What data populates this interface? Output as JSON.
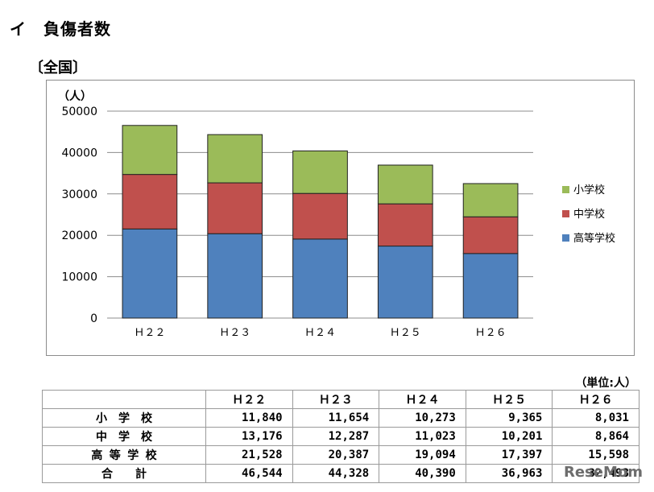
{
  "heading": "イ　負傷者数",
  "region": "〔全国〕",
  "chart_data": {
    "type": "bar",
    "stacked": true,
    "categories": [
      "Ｈ２２",
      "Ｈ２３",
      "Ｈ２４",
      "Ｈ２５",
      "Ｈ２６"
    ],
    "series": [
      {
        "name": "高等学校",
        "values": [
          21528,
          20387,
          19094,
          17397,
          15598
        ],
        "color": "#4f81bd"
      },
      {
        "name": "中学校",
        "values": [
          13176,
          12287,
          11023,
          10201,
          8864
        ],
        "color": "#c0504d"
      },
      {
        "name": "小学校",
        "values": [
          11840,
          11654,
          10273,
          9365,
          8031
        ],
        "color": "#9bbb59"
      }
    ],
    "ylabel": "（人）",
    "ylim": [
      0,
      50000
    ],
    "yticks": [
      0,
      10000,
      20000,
      30000,
      40000,
      50000
    ],
    "grid": true,
    "legend_position": "right",
    "legend_order": [
      "小学校",
      "中学校",
      "高等学校"
    ]
  },
  "table": {
    "unit_note": "（単位:人）",
    "headers": [
      "",
      "Ｈ２２",
      "Ｈ２３",
      "Ｈ２４",
      "Ｈ２５",
      "Ｈ２６"
    ],
    "rows": [
      {
        "label": "小　学　校",
        "values": [
          "11,840",
          "11,654",
          "10,273",
          "9,365",
          "8,031"
        ]
      },
      {
        "label": "中　学　校",
        "values": [
          "13,176",
          "12,287",
          "11,023",
          "10,201",
          "8,864"
        ]
      },
      {
        "label": "高 等 学 校",
        "values": [
          "21,528",
          "20,387",
          "19,094",
          "17,397",
          "15,598"
        ]
      },
      {
        "label": "合　　計",
        "values": [
          "46,544",
          "44,328",
          "40,390",
          "36,963",
          "32,493"
        ]
      }
    ]
  },
  "watermark": "ReseMom"
}
